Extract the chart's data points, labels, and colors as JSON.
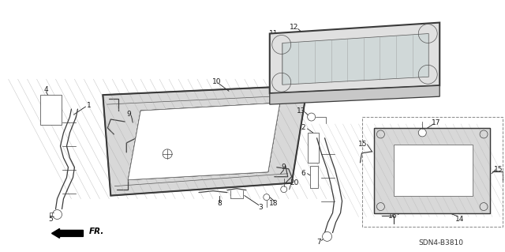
{
  "bg_color": "#ffffff",
  "fig_width": 6.4,
  "fig_height": 3.19,
  "dpi": 100,
  "diagram_code": "SDN4-B3810",
  "line_color": "#3a3a3a",
  "text_color": "#1a1a1a",
  "annotation_fontsize": 6.5,
  "ref_fontsize": 6.5,
  "hatch_color": "#888888",
  "fill_light": "#e8e8e8",
  "fill_dark": "#cccccc"
}
